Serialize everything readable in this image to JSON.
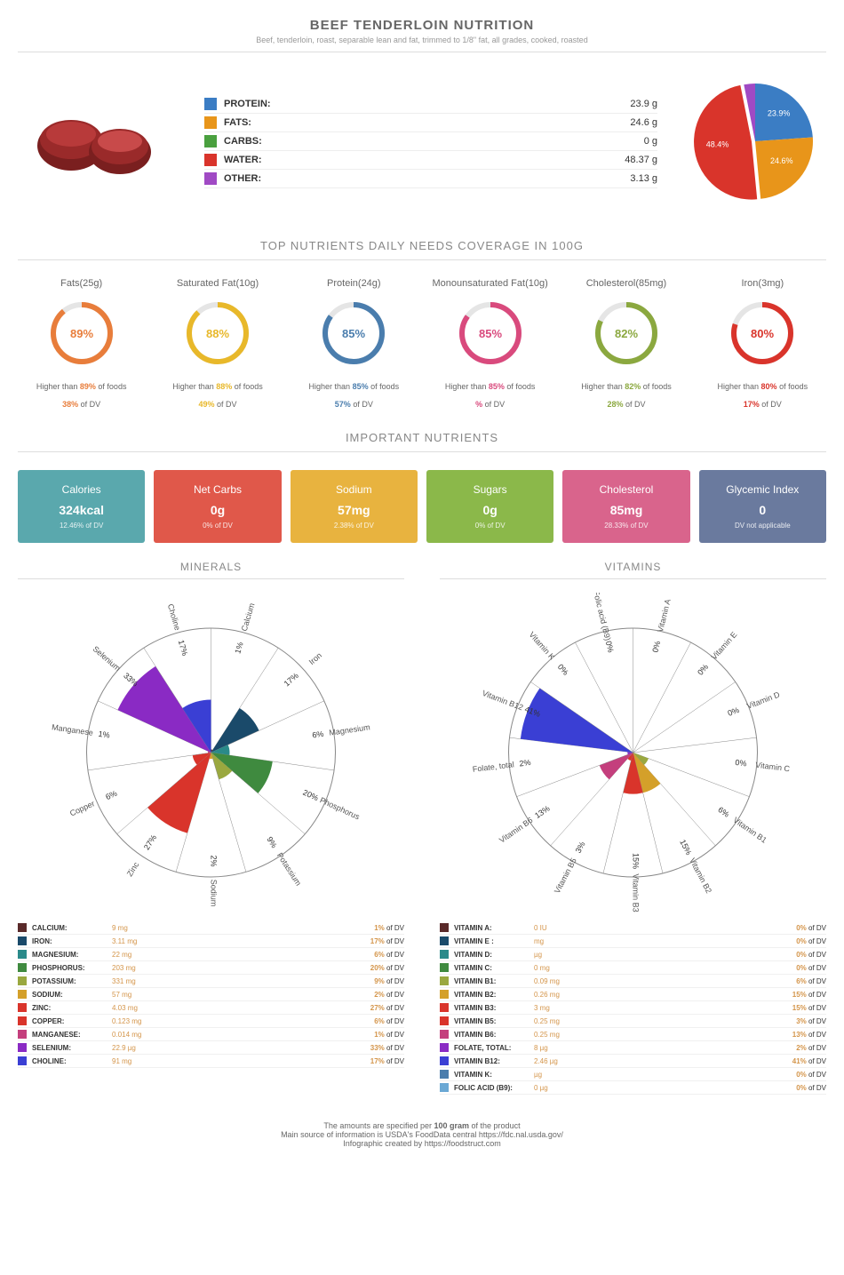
{
  "header": {
    "title": "BEEF TENDERLOIN NUTRITION",
    "subtitle": "Beef, tenderloin, roast, separable lean and fat, trimmed to 1/8\" fat, all grades, cooked, roasted"
  },
  "macros": [
    {
      "label": "PROTEIN:",
      "value": "23.9 g",
      "color": "#3b7dc4",
      "pct": 23.9
    },
    {
      "label": "FATS:",
      "value": "24.6 g",
      "color": "#e8951a",
      "pct": 24.6
    },
    {
      "label": "CARBS:",
      "value": "0 g",
      "color": "#4aa03f",
      "pct": 0
    },
    {
      "label": "WATER:",
      "value": "48.37 g",
      "color": "#d9342b",
      "pct": 48.4
    },
    {
      "label": "OTHER:",
      "value": "3.13 g",
      "color": "#a04ac4",
      "pct": 3.13
    }
  ],
  "pie_labels": [
    "23.9%",
    "24.6%",
    "48.4%"
  ],
  "top_nutrients_title": "TOP NUTRIENTS DAILY NEEDS COVERAGE IN 100G",
  "donuts": [
    {
      "name": "Fats(25g)",
      "pct": 89,
      "color": "#e87d3b",
      "sub1": "Higher than 89% of foods",
      "sub2": "38% of DV",
      "hlcolor": "#e87d3b"
    },
    {
      "name": "Saturated Fat(10g)",
      "pct": 88,
      "color": "#e8b82a",
      "sub1": "Higher than 88% of foods",
      "sub2": "49% of DV",
      "hlcolor": "#e8b82a"
    },
    {
      "name": "Protein(24g)",
      "pct": 85,
      "color": "#4a7dad",
      "sub1": "Higher than 85% of foods",
      "sub2": "57% of DV",
      "hlcolor": "#4a7dad"
    },
    {
      "name": "Monounsaturated Fat(10g)",
      "pct": 85,
      "color": "#d94a7d",
      "sub1": "Higher than 85% of foods",
      "sub2": "% of DV",
      "hlcolor": "#d94a7d"
    },
    {
      "name": "Cholesterol(85mg)",
      "pct": 82,
      "color": "#8ba83f",
      "sub1": "Higher than 82% of foods",
      "sub2": "28% of DV",
      "hlcolor": "#8ba83f"
    },
    {
      "name": "Iron(3mg)",
      "pct": 80,
      "color": "#d9342b",
      "sub1": "Higher than 80% of foods",
      "sub2": "17% of DV",
      "hlcolor": "#d9342b"
    }
  ],
  "important_title": "IMPORTANT NUTRIENTS",
  "cards": [
    {
      "title": "Calories",
      "val": "324kcal",
      "dv": "12.46% of DV",
      "bg": "#5aa8ad"
    },
    {
      "title": "Net Carbs",
      "val": "0g",
      "dv": "0% of DV",
      "bg": "#e0584a"
    },
    {
      "title": "Sodium",
      "val": "57mg",
      "dv": "2.38% of DV",
      "bg": "#e8b33f"
    },
    {
      "title": "Sugars",
      "val": "0g",
      "dv": "0% of DV",
      "bg": "#8bb84a"
    },
    {
      "title": "Cholesterol",
      "val": "85mg",
      "dv": "28.33% of DV",
      "bg": "#d9648c"
    },
    {
      "title": "Glycemic Index",
      "val": "0",
      "dv": "DV not applicable",
      "bg": "#6a7a9e"
    }
  ],
  "minerals_title": "MINERALS",
  "vitamins_title": "VITAMINS",
  "minerals": [
    {
      "name": "CALCIUM:",
      "amt": "9 mg",
      "dv": 1,
      "color": "#5a2a2a"
    },
    {
      "name": "IRON:",
      "amt": "3.11 mg",
      "dv": 17,
      "color": "#1a4a6a"
    },
    {
      "name": "MAGNESIUM:",
      "amt": "22 mg",
      "dv": 6,
      "color": "#2a8a8a"
    },
    {
      "name": "PHOSPHORUS:",
      "amt": "203 mg",
      "dv": 20,
      "color": "#3f8a3f"
    },
    {
      "name": "POTASSIUM:",
      "amt": "331 mg",
      "dv": 9,
      "color": "#9aa83f"
    },
    {
      "name": "SODIUM:",
      "amt": "57 mg",
      "dv": 2,
      "color": "#d4a02a"
    },
    {
      "name": "ZINC:",
      "amt": "4.03 mg",
      "dv": 27,
      "color": "#d9342b"
    },
    {
      "name": "COPPER:",
      "amt": "0.123 mg",
      "dv": 6,
      "color": "#d9342b"
    },
    {
      "name": "MANGANESE:",
      "amt": "0.014 mg",
      "dv": 1,
      "color": "#c43f7d"
    },
    {
      "name": "SELENIUM:",
      "amt": "22.9 µg",
      "dv": 33,
      "color": "#8a2ac4"
    },
    {
      "name": "CHOLINE:",
      "amt": "91 mg",
      "dv": 17,
      "color": "#3a3fd4"
    }
  ],
  "vitamins": [
    {
      "name": "VITAMIN A:",
      "amt": "0 IU",
      "dv": 0,
      "color": "#5a2a2a"
    },
    {
      "name": "VITAMIN E :",
      "amt": "mg",
      "dv": 0,
      "color": "#1a4a6a"
    },
    {
      "name": "VITAMIN D:",
      "amt": "µg",
      "dv": 0,
      "color": "#2a8a8a"
    },
    {
      "name": "VITAMIN C:",
      "amt": "0 mg",
      "dv": 0,
      "color": "#3f8a3f"
    },
    {
      "name": "VITAMIN B1:",
      "amt": "0.09 mg",
      "dv": 6,
      "color": "#9aa83f"
    },
    {
      "name": "VITAMIN B2:",
      "amt": "0.26 mg",
      "dv": 15,
      "color": "#d4a02a"
    },
    {
      "name": "VITAMIN B3:",
      "amt": "3 mg",
      "dv": 15,
      "color": "#d9342b"
    },
    {
      "name": "VITAMIN B5:",
      "amt": "0.25 mg",
      "dv": 3,
      "color": "#d9342b"
    },
    {
      "name": "VITAMIN B6:",
      "amt": "0.25 mg",
      "dv": 13,
      "color": "#c43f7d"
    },
    {
      "name": "FOLATE, TOTAL:",
      "amt": "8 µg",
      "dv": 2,
      "color": "#8a2ac4"
    },
    {
      "name": "VITAMIN B12:",
      "amt": "2.46 µg",
      "dv": 41,
      "color": "#3a3fd4"
    },
    {
      "name": "VITAMIN K:",
      "amt": "µg",
      "dv": 0,
      "color": "#4a7dad"
    },
    {
      "name": "FOLIC ACID (B9):",
      "amt": "0 µg",
      "dv": 0,
      "color": "#6aa8d4"
    }
  ],
  "mineral_labels": [
    "Calcium",
    "Iron",
    "Magnesium",
    "Phosphorus",
    "Potassium",
    "Sodium",
    "Zinc",
    "Copper",
    "Manganese",
    "Selenium",
    "Choline"
  ],
  "vitamin_labels": [
    "Vitamin A",
    "Vitamin E",
    "Vitamin D",
    "Vitamin C",
    "Vitamin B1",
    "Vitamin B2",
    "Vitamin B3",
    "Vitamin B5",
    "Vitamin B6",
    "Folate, total",
    "Vitamin B12",
    "Vitamin K",
    "Folic acid (B9)"
  ],
  "footer": {
    "l1": "The amounts are specified per 100 gram of the product",
    "l2": "Main source of information is USDA's FoodData central https://fdc.nal.usda.gov/",
    "l3": "Infographic created by https://foodstruct.com"
  }
}
